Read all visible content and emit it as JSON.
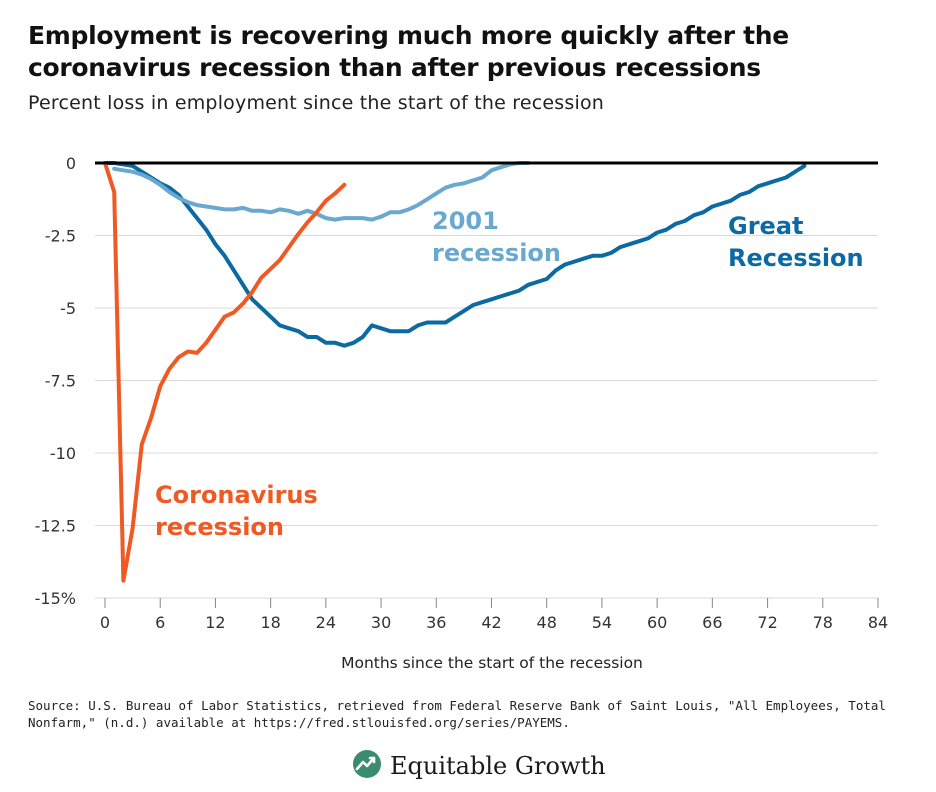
{
  "title": "Employment is recovering much more quickly after the coronavirus recession than after previous recessions",
  "subtitle": "Percent loss in employment since the start of the recession",
  "source": "Source: U.S. Bureau of Labor Statistics, retrieved from Federal Reserve Bank of Saint Louis, \"All Employees, Total Nonfarm,\" (n.d.) available at https://fred.stlouisfed.org/series/PAYEMS.",
  "brand": {
    "name": "Equitable Growth",
    "icon": "equitable-growth-logo-icon"
  },
  "colors": {
    "coronavirus": "#ef5a24",
    "great": "#0b6aa2",
    "r2001": "#6aa8cf",
    "grid": "#d9d9d9",
    "zero": "#000000"
  },
  "chart_data": {
    "type": "line",
    "xlabel": "Months since the start of the recession",
    "ylabel": "",
    "xlim": [
      0,
      84
    ],
    "ylim": [
      -15,
      0
    ],
    "xticks": [
      "0",
      "6",
      "12",
      "18",
      "24",
      "30",
      "36",
      "42",
      "48",
      "54",
      "60",
      "66",
      "72",
      "78",
      "84"
    ],
    "yticks": [
      "0",
      "-2.5",
      "-5",
      "-7.5",
      "-10",
      "-12.5",
      "-15%"
    ],
    "grid": true,
    "series": [
      {
        "name": "Great Recession",
        "label_lines": [
          "Great",
          "Recession"
        ],
        "x": [
          0,
          1,
          2,
          3,
          4,
          5,
          6,
          7,
          8,
          9,
          10,
          11,
          12,
          13,
          14,
          15,
          16,
          17,
          18,
          19,
          20,
          21,
          22,
          23,
          24,
          25,
          26,
          27,
          28,
          29,
          30,
          31,
          32,
          33,
          34,
          35,
          36,
          37,
          38,
          39,
          40,
          41,
          42,
          43,
          44,
          45,
          46,
          47,
          48,
          49,
          50,
          51,
          52,
          53,
          54,
          55,
          56,
          57,
          58,
          59,
          60,
          61,
          62,
          63,
          64,
          65,
          66,
          67,
          68,
          69,
          70,
          71,
          72,
          73,
          74,
          75,
          76
        ],
        "y": [
          0,
          0,
          -0.05,
          -0.1,
          -0.3,
          -0.5,
          -0.7,
          -0.85,
          -1.1,
          -1.5,
          -1.9,
          -2.3,
          -2.8,
          -3.2,
          -3.7,
          -4.2,
          -4.7,
          -5.0,
          -5.3,
          -5.6,
          -5.7,
          -5.8,
          -6.0,
          -6.0,
          -6.2,
          -6.2,
          -6.3,
          -6.2,
          -6.0,
          -5.6,
          -5.7,
          -5.8,
          -5.8,
          -5.8,
          -5.6,
          -5.5,
          -5.5,
          -5.5,
          -5.3,
          -5.1,
          -4.9,
          -4.8,
          -4.7,
          -4.6,
          -4.5,
          -4.4,
          -4.2,
          -4.1,
          -4.0,
          -3.7,
          -3.5,
          -3.4,
          -3.3,
          -3.2,
          -3.2,
          -3.1,
          -2.9,
          -2.8,
          -2.7,
          -2.6,
          -2.4,
          -2.3,
          -2.1,
          -2.0,
          -1.8,
          -1.7,
          -1.5,
          -1.4,
          -1.3,
          -1.1,
          -1.0,
          -0.8,
          -0.7,
          -0.6,
          -0.5,
          -0.3,
          -0.1
        ]
      },
      {
        "name": "2001 recession",
        "label_lines": [
          "2001",
          "recession"
        ],
        "x": [
          1,
          2,
          3,
          4,
          5,
          6,
          7,
          8,
          9,
          10,
          11,
          12,
          13,
          14,
          15,
          16,
          17,
          18,
          19,
          20,
          21,
          22,
          23,
          24,
          25,
          26,
          27,
          28,
          29,
          30,
          31,
          32,
          33,
          34,
          35,
          36,
          37,
          38,
          39,
          40,
          41,
          42,
          43,
          44,
          45,
          46
        ],
        "y": [
          -0.2,
          -0.25,
          -0.3,
          -0.4,
          -0.55,
          -0.75,
          -1.0,
          -1.2,
          -1.35,
          -1.45,
          -1.5,
          -1.55,
          -1.6,
          -1.6,
          -1.55,
          -1.65,
          -1.65,
          -1.7,
          -1.6,
          -1.65,
          -1.75,
          -1.65,
          -1.75,
          -1.9,
          -1.95,
          -1.9,
          -1.9,
          -1.9,
          -1.95,
          -1.85,
          -1.7,
          -1.7,
          -1.6,
          -1.45,
          -1.25,
          -1.05,
          -0.85,
          -0.75,
          -0.7,
          -0.6,
          -0.5,
          -0.25,
          -0.15,
          -0.05,
          0.0,
          0.0
        ]
      },
      {
        "name": "Coronavirus recession",
        "label_lines": [
          "Coronavirus",
          "recession"
        ],
        "x": [
          0,
          1,
          2,
          3,
          4,
          5,
          6,
          7,
          8,
          9,
          10,
          11,
          12,
          13,
          14,
          15,
          16,
          17,
          18,
          19,
          20,
          21,
          22,
          23,
          24,
          25,
          26
        ],
        "y": [
          0,
          -1.0,
          -14.4,
          -12.6,
          -9.7,
          -8.8,
          -7.7,
          -7.1,
          -6.7,
          -6.5,
          -6.55,
          -6.2,
          -5.75,
          -5.3,
          -5.15,
          -4.85,
          -4.45,
          -3.95,
          -3.65,
          -3.35,
          -2.9,
          -2.45,
          -2.05,
          -1.7,
          -1.3,
          -1.05,
          -0.75
        ]
      }
    ]
  }
}
